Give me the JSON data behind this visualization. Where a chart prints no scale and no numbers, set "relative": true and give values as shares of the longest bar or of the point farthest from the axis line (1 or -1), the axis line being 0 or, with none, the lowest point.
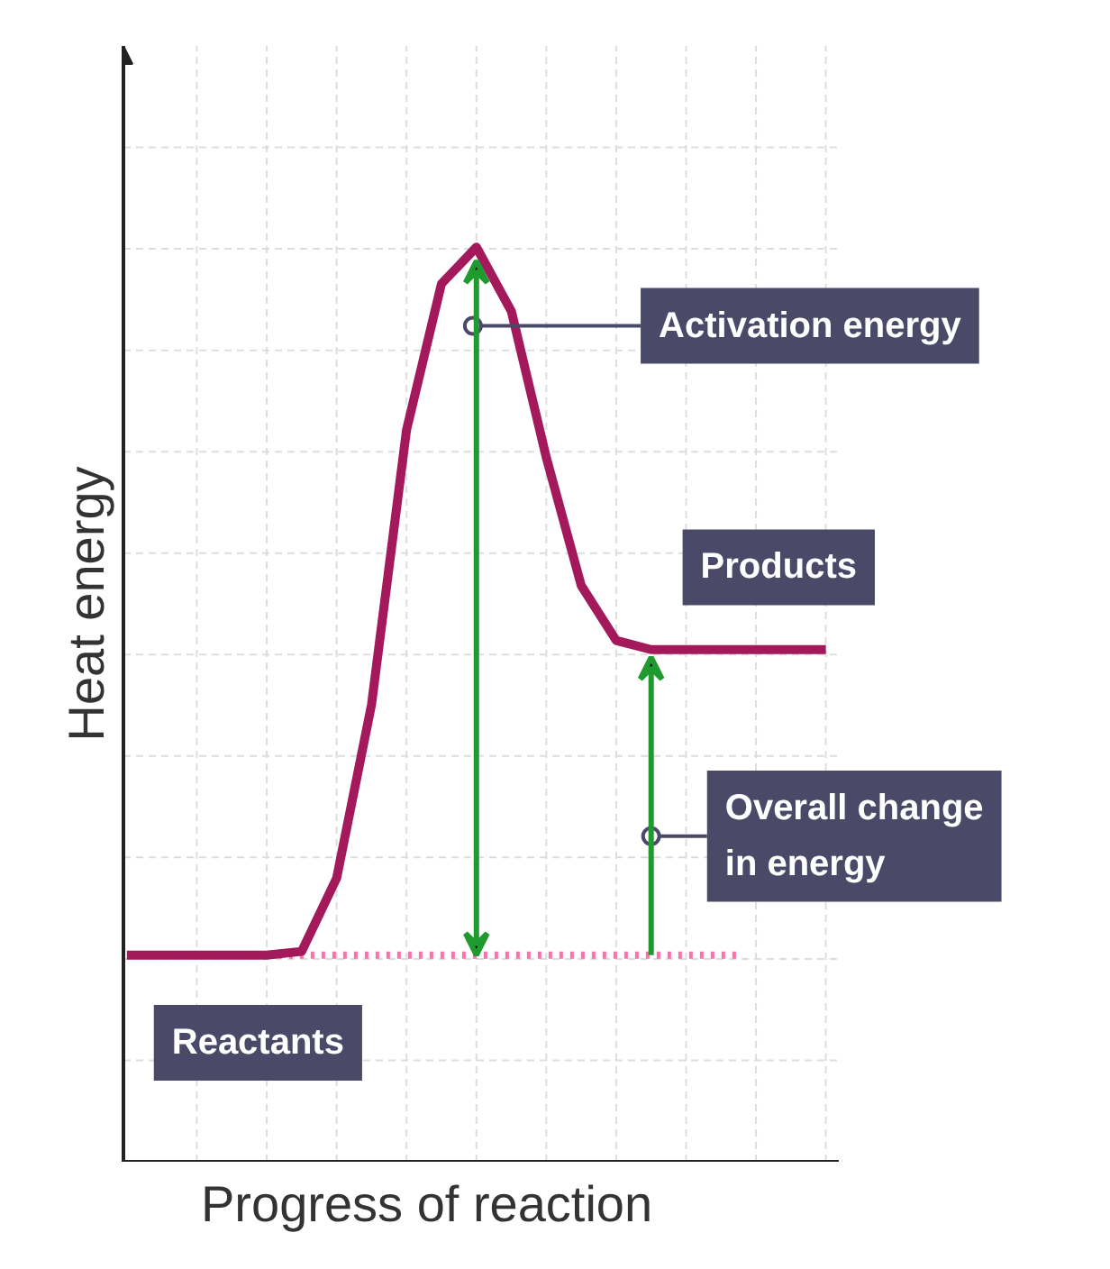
{
  "chart_data": {
    "type": "line",
    "relative": true,
    "xlabel": "Progress of reaction",
    "ylabel": "Heat energy",
    "categories": [
      null,
      null,
      null,
      null,
      null,
      null,
      null,
      null,
      null,
      null,
      null,
      null,
      null,
      null,
      null,
      null,
      null,
      null,
      null,
      null,
      null
    ],
    "series": [
      {
        "color": "#a3195b",
        "values": [
          0.226,
          0.226,
          0.226,
          0.226,
          0.226,
          0.23,
          0.31,
          0.5,
          0.8,
          0.96,
          1.0,
          0.93,
          0.77,
          0.63,
          0.57,
          0.56,
          0.56,
          0.56,
          0.56,
          0.56,
          0.56
        ]
      }
    ],
    "ref_lines": [
      {
        "axis": "y",
        "value": 0.226,
        "label": null,
        "color": "#ff6fa8",
        "line_style": "dotted"
      }
    ],
    "annotations": [
      "Activation energy",
      "Products",
      "Overall change\nin energy",
      "Reactants"
    ],
    "grid": true
  }
}
